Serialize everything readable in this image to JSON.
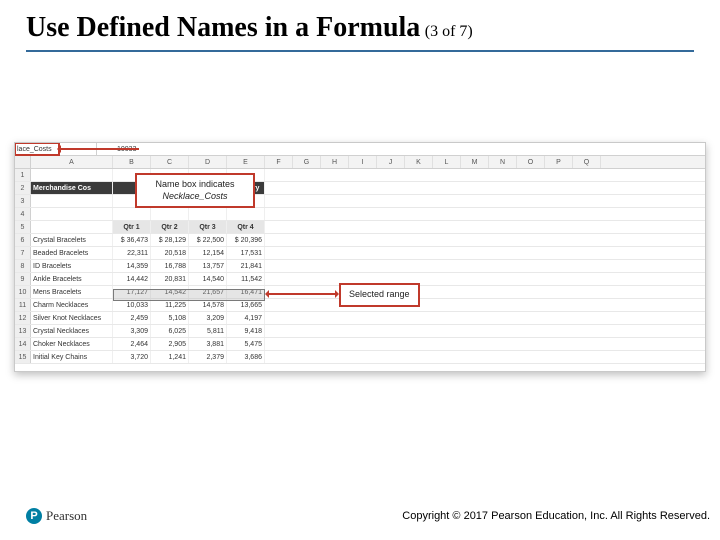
{
  "slide": {
    "title_main": "Use Defined Names in a Formula",
    "title_sub": "(3 of 7)",
    "accent_rule_color": "#346a9a"
  },
  "screenshot": {
    "namebox_value": "lace_Costs",
    "formula_bar_value": "10033",
    "column_letters": [
      "A",
      "B",
      "C",
      "D",
      "E",
      "F",
      "G",
      "H",
      "I",
      "J",
      "K",
      "L",
      "M",
      "N",
      "O",
      "P",
      "Q"
    ],
    "section_header_left": "Merchandise Cos",
    "section_header_right": "Category",
    "qtr_headers": [
      "Qtr 1",
      "Qtr 2",
      "Qtr 3",
      "Qtr 4"
    ],
    "table": {
      "rows": [
        {
          "n": 6,
          "label": "Crystal Bracelets",
          "vals": [
            "$ 36,473",
            "$ 28,129",
            "$ 22,500",
            "$ 20,396"
          ]
        },
        {
          "n": 7,
          "label": "Beaded Bracelets",
          "vals": [
            "22,311",
            "20,518",
            "12,154",
            "17,531"
          ]
        },
        {
          "n": 8,
          "label": "ID Bracelets",
          "vals": [
            "14,359",
            "16,788",
            "13,757",
            "21,841"
          ]
        },
        {
          "n": 9,
          "label": "Ankle Bracelets",
          "vals": [
            "14,442",
            "20,831",
            "14,540",
            "11,542"
          ]
        },
        {
          "n": 10,
          "label": "Mens Bracelets",
          "vals": [
            "17,127",
            "14,542",
            "21,657",
            "16,471"
          ]
        },
        {
          "n": 11,
          "label": "Charm Necklaces",
          "vals": [
            "10,033",
            "11,225",
            "14,578",
            "13,665"
          ]
        },
        {
          "n": 12,
          "label": "Silver Knot Necklaces",
          "vals": [
            "2,459",
            "5,108",
            "3,209",
            "4,197"
          ]
        },
        {
          "n": 13,
          "label": "Crystal Necklaces",
          "vals": [
            "3,309",
            "6,025",
            "5,811",
            "9,418"
          ]
        },
        {
          "n": 14,
          "label": "Choker Necklaces",
          "vals": [
            "2,464",
            "2,905",
            "3,881",
            "5,475"
          ]
        },
        {
          "n": 15,
          "label": "Initial Key Chains",
          "vals": [
            "3,720",
            "1,241",
            "2,379",
            "3,686"
          ]
        }
      ]
    },
    "selection": {
      "row": 11,
      "cols": "B:E"
    },
    "callout1_line1": "Name box indicates",
    "callout1_line2": "Necklace_Costs",
    "callout2_text": "Selected range",
    "callout_border_color": "#c0392b"
  },
  "footer": {
    "logo_initial": "P",
    "logo_text": "Pearson",
    "logo_color": "#007fa3",
    "copyright": "Copyright © 2017 Pearson Education, Inc. All Rights Reserved."
  }
}
